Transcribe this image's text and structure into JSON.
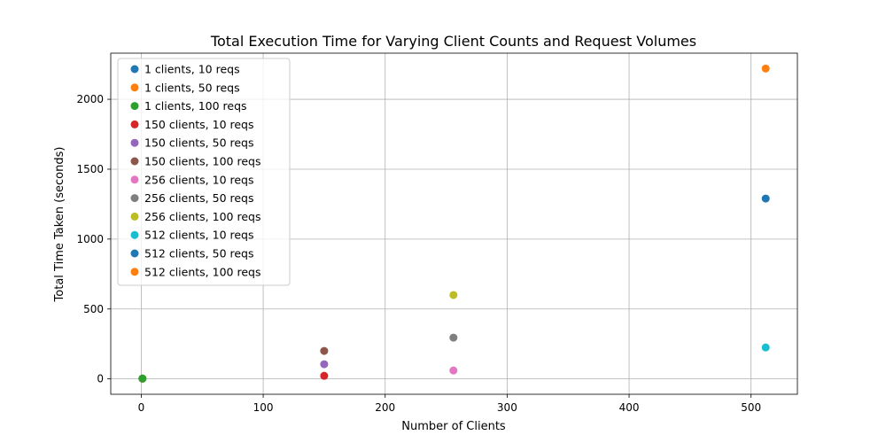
{
  "chart_data": {
    "type": "scatter",
    "title": "Total Execution Time for Varying Client Counts and Request Volumes",
    "xlabel": "Number of Clients",
    "ylabel": "Total Time Taken (seconds)",
    "xlim": [
      -25,
      538
    ],
    "ylim": [
      -110,
      2330
    ],
    "xticks": [
      0,
      100,
      200,
      300,
      400,
      500
    ],
    "yticks": [
      0,
      500,
      1000,
      1500,
      2000
    ],
    "grid": true,
    "legend_position": "upper-left",
    "series": [
      {
        "name": "1 clients, 10 reqs",
        "color": "#1f77b4",
        "points": [
          {
            "x": 1,
            "y": 1
          }
        ]
      },
      {
        "name": "1 clients, 50 reqs",
        "color": "#ff7f0e",
        "points": [
          {
            "x": 1,
            "y": 2
          }
        ]
      },
      {
        "name": "1 clients, 100 reqs",
        "color": "#2ca02c",
        "points": [
          {
            "x": 1,
            "y": 3
          }
        ]
      },
      {
        "name": "150 clients, 10 reqs",
        "color": "#d62728",
        "points": [
          {
            "x": 150,
            "y": 22
          }
        ]
      },
      {
        "name": "150 clients, 50 reqs",
        "color": "#9467bd",
        "points": [
          {
            "x": 150,
            "y": 105
          }
        ]
      },
      {
        "name": "150 clients, 100 reqs",
        "color": "#8c564b",
        "points": [
          {
            "x": 150,
            "y": 200
          }
        ]
      },
      {
        "name": "256 clients, 10 reqs",
        "color": "#e377c2",
        "points": [
          {
            "x": 256,
            "y": 60
          }
        ]
      },
      {
        "name": "256 clients, 50 reqs",
        "color": "#7f7f7f",
        "points": [
          {
            "x": 256,
            "y": 295
          }
        ]
      },
      {
        "name": "256 clients, 100 reqs",
        "color": "#bcbd22",
        "points": [
          {
            "x": 256,
            "y": 600
          }
        ]
      },
      {
        "name": "512 clients, 10 reqs",
        "color": "#17becf",
        "points": [
          {
            "x": 512,
            "y": 225
          }
        ]
      },
      {
        "name": "512 clients, 50 reqs",
        "color": "#1f77b4",
        "points": [
          {
            "x": 512,
            "y": 1290
          }
        ]
      },
      {
        "name": "512 clients, 100 reqs",
        "color": "#ff7f0e",
        "points": [
          {
            "x": 512,
            "y": 2220
          }
        ]
      }
    ]
  }
}
